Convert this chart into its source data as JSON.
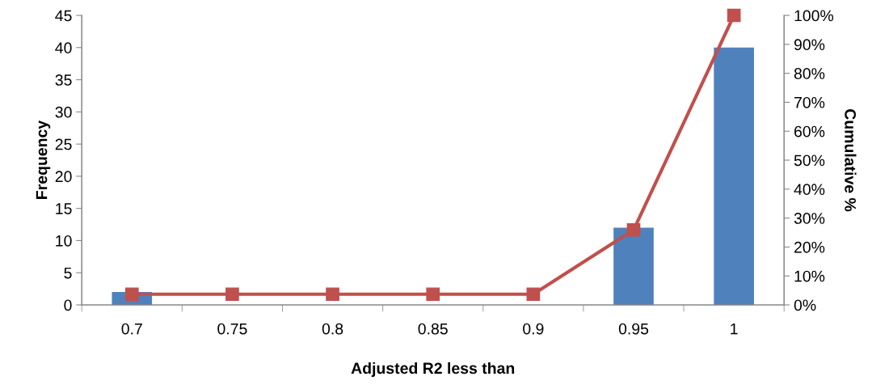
{
  "chart_data": {
    "type": "bar",
    "xlabel": "Adjusted R2 less than",
    "ylabel": "Frequency",
    "y2label": "Cumulative %",
    "categories": [
      "0.7",
      "0.75",
      "0.8",
      "0.85",
      "0.9",
      "0.95",
      "1"
    ],
    "series": [
      {
        "color": "#4f81bd",
        "values": [
          2,
          0,
          0,
          0,
          0,
          12,
          40
        ]
      },
      {
        "type": "line",
        "axis": "y2",
        "color": "#c0504d",
        "marker": "square",
        "values": [
          3.7,
          3.7,
          3.7,
          3.7,
          3.7,
          25.9,
          100
        ]
      }
    ],
    "ylim": [
      0,
      45
    ],
    "yticks": [
      0,
      5,
      10,
      15,
      20,
      25,
      30,
      35,
      40,
      45
    ],
    "y2lim": [
      0,
      100
    ],
    "y2ticks": [
      {
        "value": 0,
        "label": "0%"
      },
      {
        "value": 10,
        "label": "10%"
      },
      {
        "value": 20,
        "label": "20%"
      },
      {
        "value": 30,
        "label": "30%"
      },
      {
        "value": 40,
        "label": "40%"
      },
      {
        "value": 50,
        "label": "50%"
      },
      {
        "value": 60,
        "label": "60%"
      },
      {
        "value": 70,
        "label": "70%"
      },
      {
        "value": 80,
        "label": "80%"
      },
      {
        "value": 90,
        "label": "90%"
      },
      {
        "value": 100,
        "label": "100%"
      }
    ],
    "grid": false,
    "legend": false
  }
}
